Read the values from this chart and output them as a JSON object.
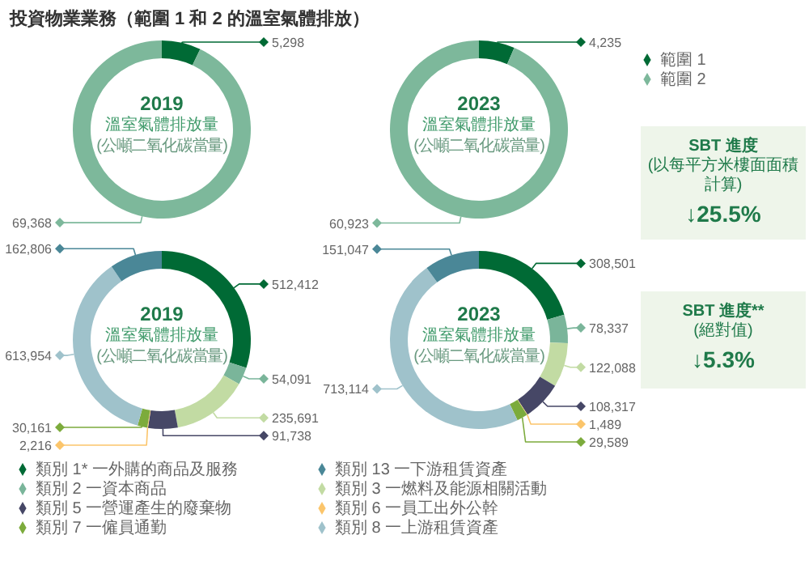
{
  "chart_data": [
    {
      "type": "donut",
      "title": "投資物業業務（範圍 1 和 2 的溫室氣體排放）",
      "subtitle": "2019",
      "annotations": [
        "溫室氣體排放量",
        "(公噸二氧化碳當量)"
      ],
      "categories": [
        null,
        null
      ],
      "values": [
        5298,
        69368
      ],
      "value_labels": [
        "5,298",
        "69,368"
      ],
      "colors": [
        "#006a35",
        "#7db89b"
      ]
    },
    {
      "type": "donut",
      "subtitle": "2023",
      "annotations": [
        "溫室氣體排放量",
        "(公噸二氧化碳當量)"
      ],
      "categories": [
        "範圍 1",
        "範圍 2"
      ],
      "values": [
        4235,
        60923
      ],
      "value_labels": [
        "4,235",
        "60,923"
      ],
      "colors": [
        "#006a35",
        "#7db89b"
      ],
      "legend": "right"
    },
    {
      "type": "other",
      "title": "SBT 進度",
      "subtitle": "(以每平方米樓面面積計算)",
      "annotations": [
        "↓25.5%"
      ]
    },
    {
      "type": "donut",
      "subtitle": "2019",
      "annotations": [
        "溫室氣體排放量",
        "(公噸二氧化碳當量)"
      ],
      "categories": [
        null,
        null,
        null,
        null,
        null,
        null,
        null,
        null
      ],
      "values": [
        512412,
        54091,
        235691,
        91738,
        2216,
        30161,
        613954,
        162806
      ],
      "value_labels": [
        "512,412",
        "54,091",
        "235,691",
        "91,738",
        "2,216",
        "30,161",
        "613,954",
        "162,806"
      ],
      "colors": [
        "#006a35",
        "#7ab59a",
        "#c2dba3",
        "#464766",
        "#fbc56b",
        "#7cab3c",
        "#9fc2cb",
        "#4a8797"
      ]
    },
    {
      "type": "donut",
      "subtitle": "2023",
      "annotations": [
        "溫室氣體排放量",
        "(公噸二氧化碳當量)"
      ],
      "categories": [
        "類別 1* 一外購的商品及服務",
        "類別 2 一資本商品",
        "類別 3 一燃料及能源相關活動",
        "類別 5 一營運產生的廢棄物",
        "類別 6 一員工出外公幹",
        "類別 7 一僱員通勤",
        "類別 8 一上游租賃資產",
        "類別 13 一下游租賃資產"
      ],
      "values": [
        308501,
        78337,
        122088,
        108317,
        1489,
        29589,
        713114,
        151047
      ],
      "value_labels": [
        "308,501",
        "78,337",
        "122,088",
        "108,317",
        "1,489",
        "29,589",
        "713,114",
        "151,047"
      ],
      "colors": [
        "#006a35",
        "#7ab59a",
        "#c2dba3",
        "#464766",
        "#fbc56b",
        "#7cab3c",
        "#9fc2cb",
        "#4a8797"
      ],
      "legend": "bottom"
    },
    {
      "type": "other",
      "title": "SBT 進度**",
      "subtitle": "(絕對值)",
      "annotations": [
        "↓5.3%"
      ]
    }
  ]
}
